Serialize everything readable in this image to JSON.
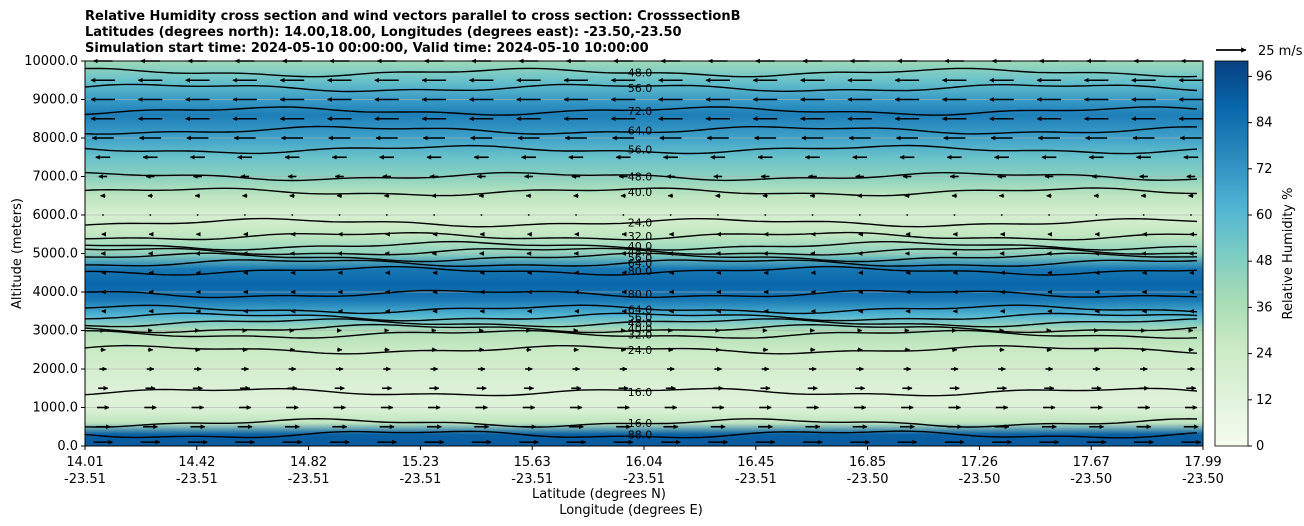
{
  "chart_data": {
    "type": "heatmap",
    "title": [
      "Relative Humidity cross section and wind vectors parallel to cross section: CrosssectionB",
      "Latitudes (degrees north): 14.00,18.00, Longitudes (degrees east): -23.50,-23.50",
      "Simulation start time: 2024-05-10 00:00:00, Valid time: 2024-05-10 10:00:00"
    ],
    "ylabel": "Altitude (meters)",
    "xlabel": "Latitude (degrees N)",
    "xlabel2": "Longitude (degrees E)",
    "ylim": [
      0,
      10000
    ],
    "yticks": [
      "0.0",
      "1000.0",
      "2000.0",
      "3000.0",
      "4000.0",
      "5000.0",
      "6000.0",
      "7000.0",
      "8000.0",
      "9000.0",
      "10000.0"
    ],
    "ytick_values": [
      0,
      1000,
      2000,
      3000,
      4000,
      5000,
      6000,
      7000,
      8000,
      9000,
      10000
    ],
    "xticks_lat": [
      "14.01",
      "14.42",
      "14.82",
      "15.23",
      "15.63",
      "16.04",
      "16.45",
      "16.85",
      "17.26",
      "17.67",
      "17.99"
    ],
    "xticks_lon": [
      "-23.51",
      "-23.51",
      "-23.51",
      "-23.51",
      "-23.51",
      "-23.51",
      "-23.51",
      "-23.50",
      "-23.50",
      "-23.50",
      "-23.50"
    ],
    "colorbar": {
      "label": "Relative Humidity %",
      "ticks": [
        "0",
        "12",
        "24",
        "36",
        "48",
        "60",
        "72",
        "84",
        "96"
      ],
      "range": [
        0,
        100
      ],
      "colors": [
        "#f7fcf0",
        "#e0f3db",
        "#ccebc5",
        "#a8ddb5",
        "#7bccc4",
        "#4eb3d3",
        "#2b8cbe",
        "#0868ac",
        "#084081"
      ]
    },
    "wind_key": "25 m/s",
    "humidity_profile": [
      {
        "alt": 0,
        "rh": 92
      },
      {
        "alt": 300,
        "rh": 90
      },
      {
        "alt": 600,
        "rh": 30
      },
      {
        "alt": 1000,
        "rh": 14
      },
      {
        "alt": 1500,
        "rh": 15
      },
      {
        "alt": 2000,
        "rh": 20
      },
      {
        "alt": 2500,
        "rh": 26
      },
      {
        "alt": 3000,
        "rh": 35
      },
      {
        "alt": 3400,
        "rh": 62
      },
      {
        "alt": 3800,
        "rh": 82
      },
      {
        "alt": 4200,
        "rh": 88
      },
      {
        "alt": 4600,
        "rh": 82
      },
      {
        "alt": 5000,
        "rh": 45
      },
      {
        "alt": 5500,
        "rh": 28
      },
      {
        "alt": 6000,
        "rh": 18
      },
      {
        "alt": 6500,
        "rh": 30
      },
      {
        "alt": 7000,
        "rh": 46
      },
      {
        "alt": 7500,
        "rh": 55
      },
      {
        "alt": 8000,
        "rh": 68
      },
      {
        "alt": 8600,
        "rh": 80
      },
      {
        "alt": 9000,
        "rh": 70
      },
      {
        "alt": 9500,
        "rh": 55
      },
      {
        "alt": 10000,
        "rh": 40
      }
    ],
    "contour_lines": [
      {
        "alt": 300,
        "label": "88.0"
      },
      {
        "alt": 600,
        "label": "16.0"
      },
      {
        "alt": 1400,
        "label": "16.0"
      },
      {
        "alt": 2500,
        "label": "24.0"
      },
      {
        "alt": 2900,
        "label": "32.0"
      },
      {
        "alt": 3050,
        "label": "40.0"
      },
      {
        "alt": 3200,
        "label": "48.0"
      },
      {
        "alt": 3350,
        "label": "56.0"
      },
      {
        "alt": 3550,
        "label": "64.0"
      },
      {
        "alt": 3950,
        "label": "80.0"
      },
      {
        "alt": 4550,
        "label": "80.0"
      },
      {
        "alt": 4750,
        "label": "64.0"
      },
      {
        "alt": 4900,
        "label": "56.0"
      },
      {
        "alt": 5050,
        "label": "48.0"
      },
      {
        "alt": 5200,
        "label": "40.0"
      },
      {
        "alt": 5450,
        "label": "32.0"
      },
      {
        "alt": 5800,
        "label": "24.0"
      },
      {
        "alt": 6600,
        "label": "40.0"
      },
      {
        "alt": 7000,
        "label": "48.0"
      },
      {
        "alt": 7700,
        "label": "56.0"
      },
      {
        "alt": 8200,
        "label": "64.0"
      },
      {
        "alt": 8700,
        "label": "72.0"
      },
      {
        "alt": 9300,
        "label": "56.0"
      },
      {
        "alt": 9700,
        "label": "48.0"
      }
    ],
    "wind_rows": [
      {
        "alt": 100,
        "u": 0.8
      },
      {
        "alt": 500,
        "u": 0.6
      },
      {
        "alt": 1000,
        "u": 0.5
      },
      {
        "alt": 1500,
        "u": 0.4
      },
      {
        "alt": 2000,
        "u": 0.3
      },
      {
        "alt": 2500,
        "u": 0.2
      },
      {
        "alt": 3000,
        "u": 0.15
      },
      {
        "alt": 3500,
        "u": -0.1
      },
      {
        "alt": 4000,
        "u": -0.1
      },
      {
        "alt": 4500,
        "u": -0.1
      },
      {
        "alt": 5000,
        "u": -0.15
      },
      {
        "alt": 5500,
        "u": -0.1
      },
      {
        "alt": 6000,
        "u": -0.05
      },
      {
        "alt": 6500,
        "u": -0.2
      },
      {
        "alt": 7000,
        "u": -0.35
      },
      {
        "alt": 7500,
        "u": -0.6
      },
      {
        "alt": 8000,
        "u": -0.9
      },
      {
        "alt": 8500,
        "u": -1.0
      },
      {
        "alt": 9000,
        "u": -1.0
      },
      {
        "alt": 9500,
        "u": -1.0
      },
      {
        "alt": 10000,
        "u": -0.8
      }
    ]
  }
}
